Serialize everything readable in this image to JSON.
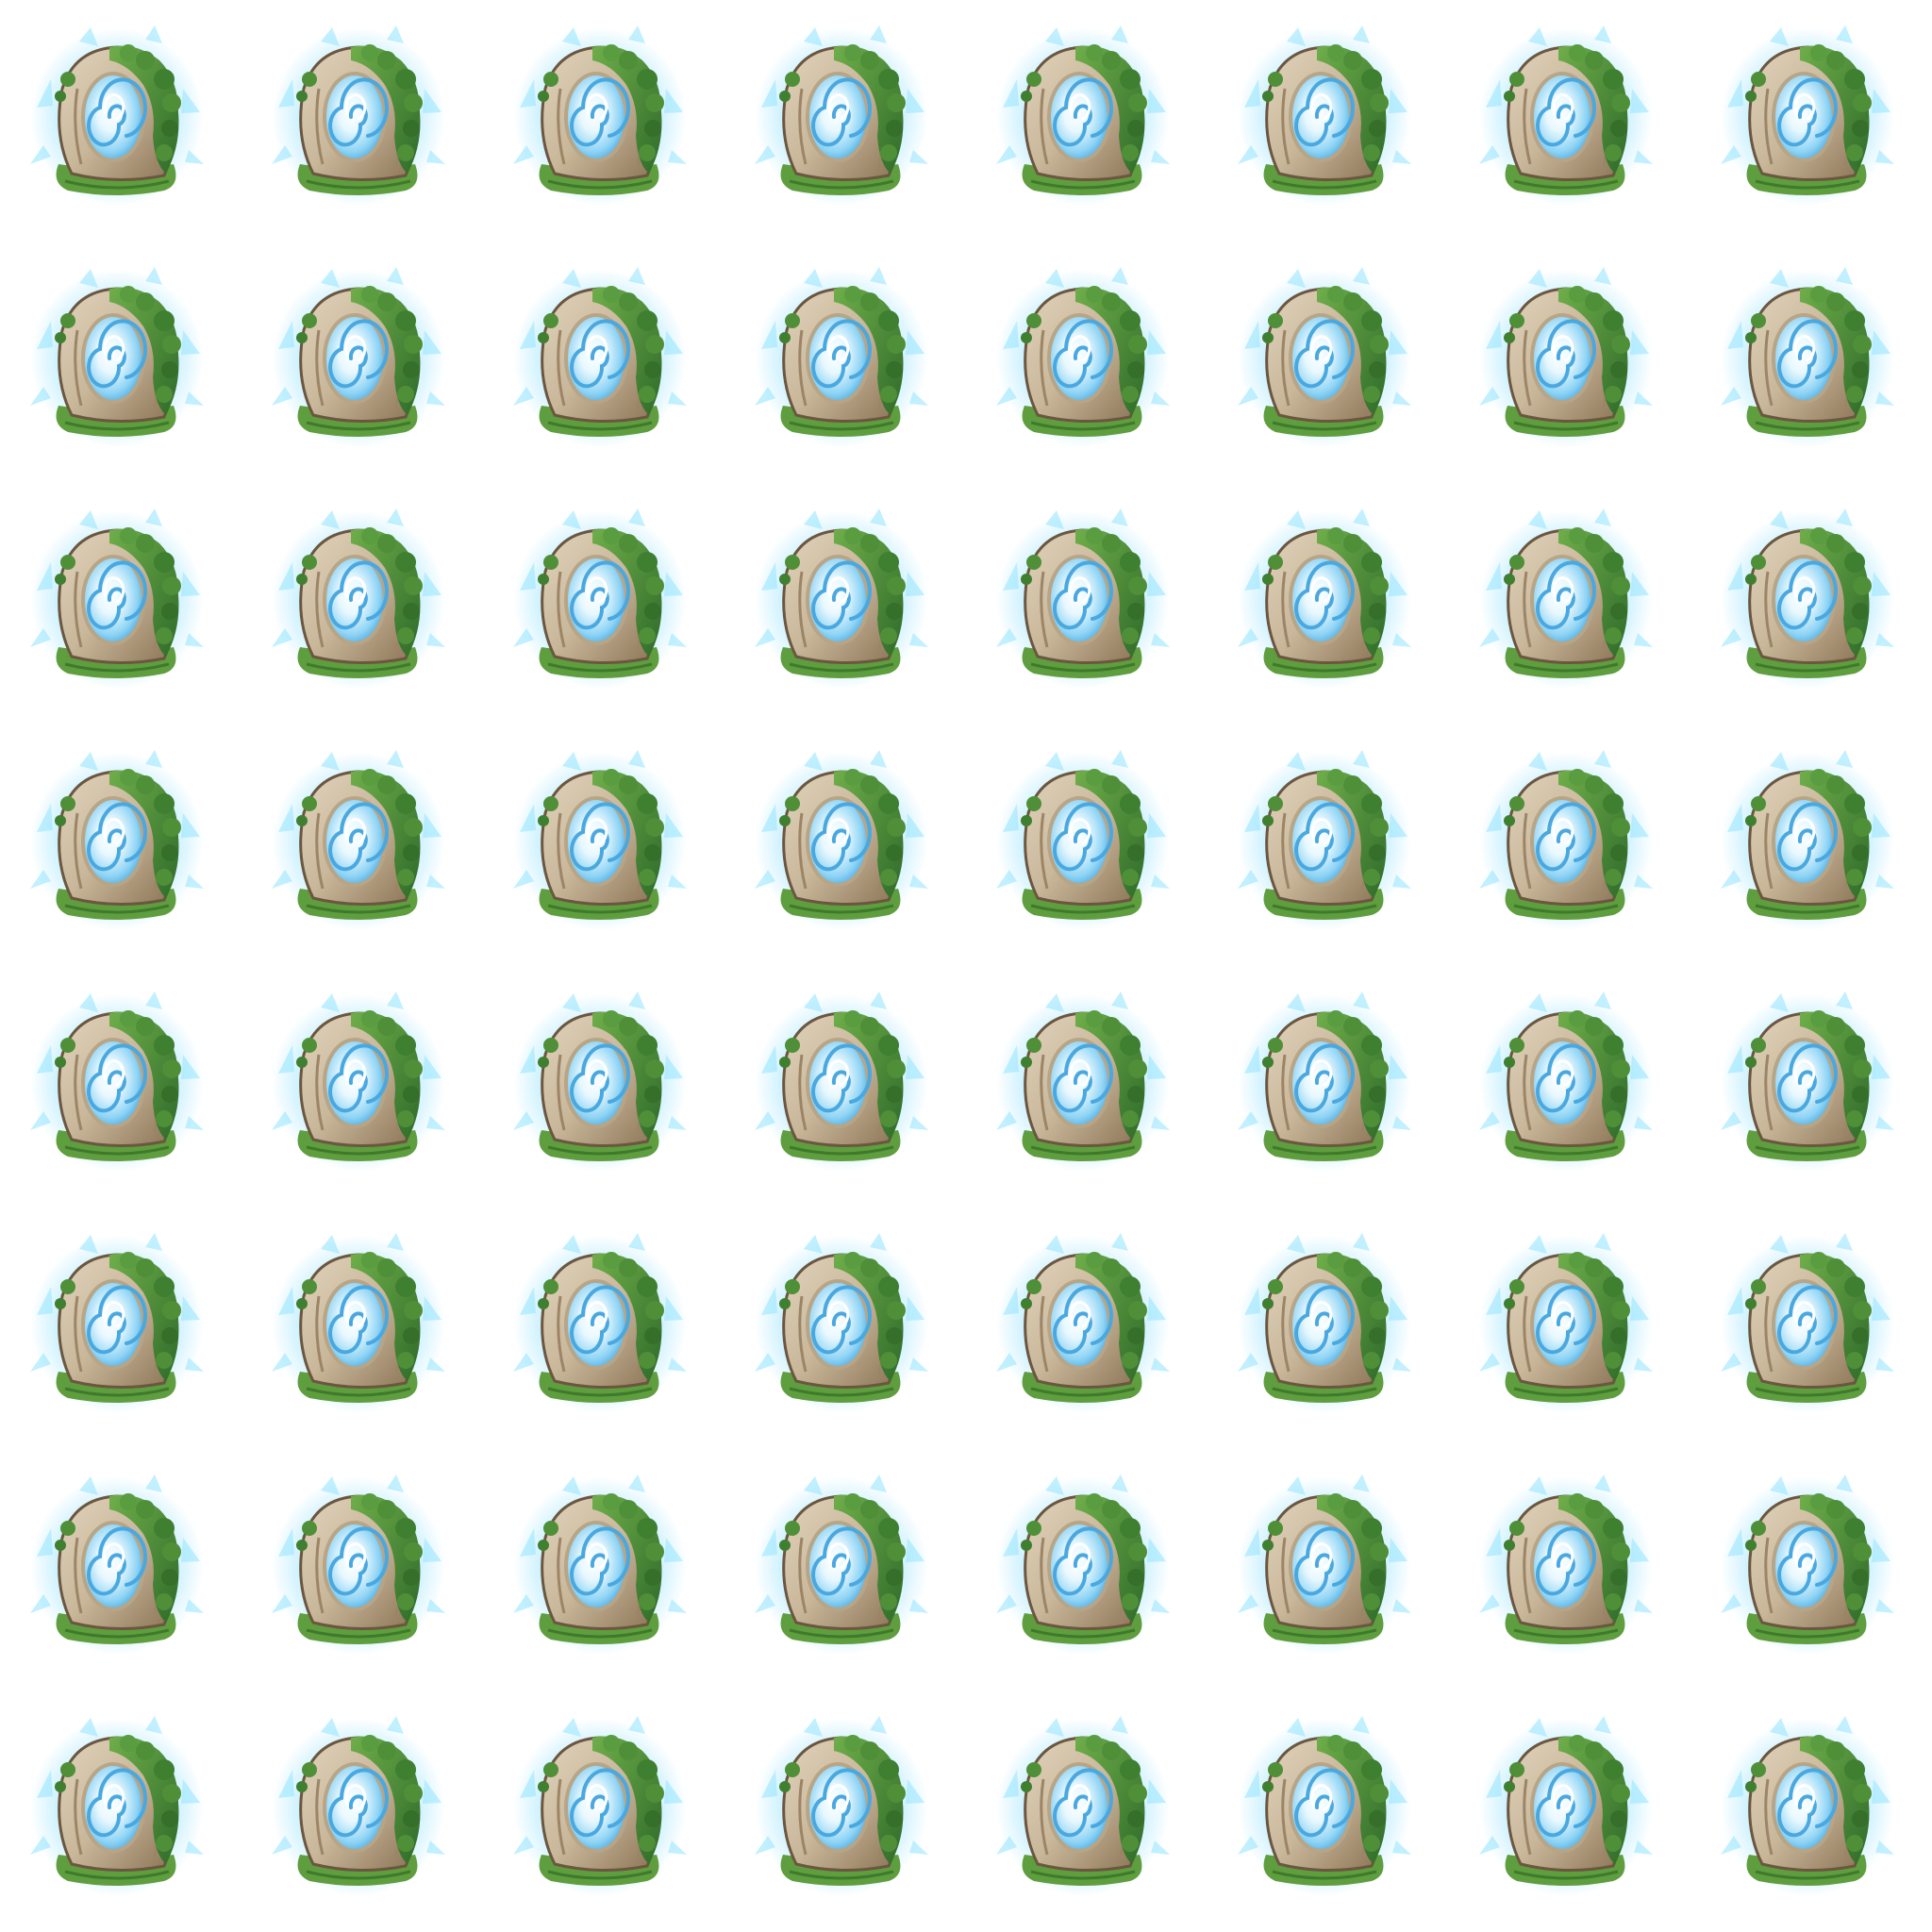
{
  "sprite_sheet": {
    "rows": 8,
    "columns": 8,
    "frame_icon": "swirling-portal-rock-icon",
    "colors": {
      "background": "#ffffff",
      "glow": "#7fdcff",
      "swirl_light": "#e8f8ff",
      "swirl_mid": "#8fd4f5",
      "swirl_dark": "#4aa8e0",
      "stone_light": "#c9b79a",
      "stone_dark": "#8b7355",
      "moss_light": "#6fae4a",
      "moss_dark": "#2f6b2a",
      "grass": "#5f9e3e"
    }
  }
}
